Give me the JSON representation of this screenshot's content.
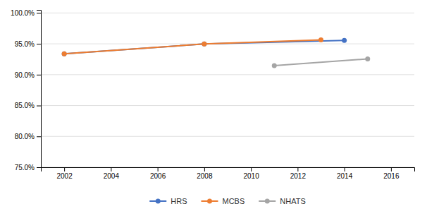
{
  "chart_data": {
    "type": "line",
    "series": [
      {
        "name": "HRS",
        "color": "#4472C4",
        "marker": "circle",
        "x": [
          2002,
          2008,
          2014
        ],
        "values": [
          0.9338,
          0.9498,
          0.9555
        ]
      },
      {
        "name": "MCBS",
        "color": "#ED7D31",
        "marker": "circle",
        "x": [
          2002,
          2008,
          2013
        ],
        "values": [
          0.9338,
          0.9498,
          0.9565
        ]
      },
      {
        "name": "NHATS",
        "color": "#A5A5A5",
        "marker": "circle",
        "x": [
          2011,
          2015
        ],
        "values": [
          0.9148,
          0.9255
        ]
      }
    ],
    "xlim": [
      2001,
      2017
    ],
    "ylim": [
      0.75,
      1.005
    ],
    "xticks": [
      2002,
      2004,
      2006,
      2008,
      2010,
      2012,
      2014,
      2016
    ],
    "yticks": [
      {
        "value": 0.75,
        "label": "75.0%"
      },
      {
        "value": 0.8,
        "label": "80.0%"
      },
      {
        "value": 0.85,
        "label": "85.0%"
      },
      {
        "value": 0.9,
        "label": "90.0%"
      },
      {
        "value": 0.95,
        "label": "95.0%"
      },
      {
        "value": 1.0,
        "label": "100.0%"
      }
    ],
    "grid": true,
    "legend": "bottom"
  }
}
